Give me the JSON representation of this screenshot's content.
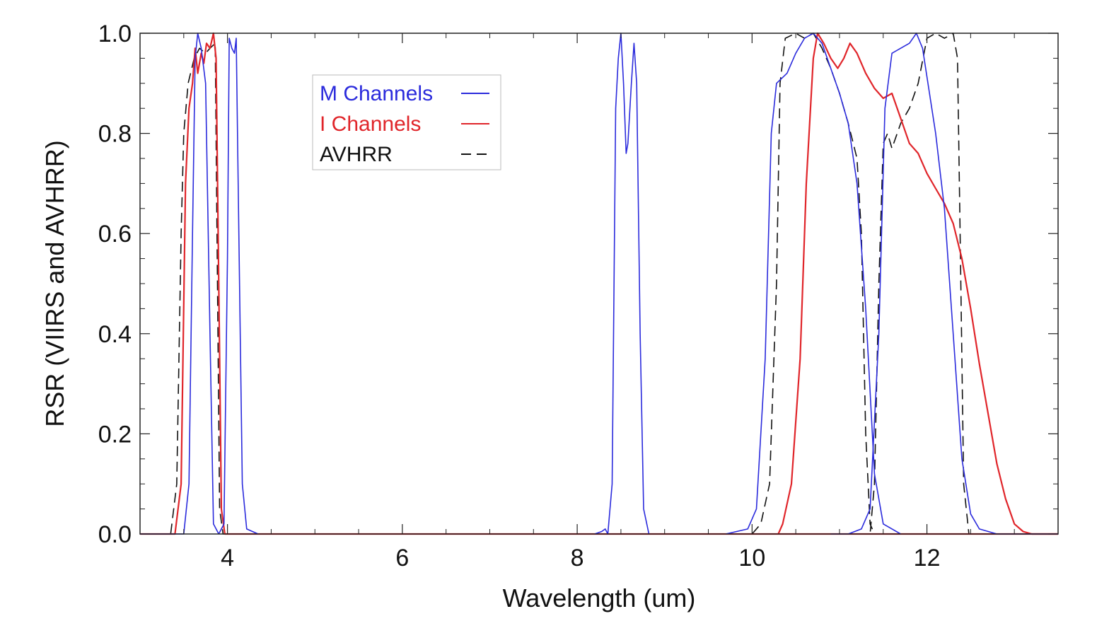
{
  "chart_data": {
    "type": "line",
    "title": "",
    "xlabel": "Wavelength (um)",
    "ylabel": "RSR (VIIRS and AVHRR)",
    "xlim": [
      3.0,
      13.5
    ],
    "ylim": [
      0.0,
      1.0
    ],
    "x_ticks": [
      "4",
      "6",
      "8",
      "10",
      "12"
    ],
    "y_ticks": [
      "0.0",
      "0.2",
      "0.4",
      "0.6",
      "0.8",
      "1.0"
    ],
    "grid": false,
    "legend_position": "top-left",
    "legend": [
      {
        "label": "M Channels",
        "color": "#2b2bdc",
        "style": "solid"
      },
      {
        "label": "I Channels",
        "color": "#e0252a",
        "style": "solid"
      },
      {
        "label": "AVHRR",
        "color": "#111111",
        "style": "dashed"
      }
    ],
    "series": [
      {
        "name": "M Channels",
        "color": "#2b2bdc",
        "style": "solid",
        "curves": [
          [
            [
              3.0,
              0.0
            ],
            [
              3.5,
              0.0
            ],
            [
              3.56,
              0.1
            ],
            [
              3.6,
              0.6
            ],
            [
              3.63,
              0.95
            ],
            [
              3.66,
              1.0
            ],
            [
              3.7,
              0.97
            ],
            [
              3.75,
              0.9
            ],
            [
              3.8,
              0.4
            ],
            [
              3.84,
              0.02
            ],
            [
              3.9,
              0.0
            ]
          ],
          [
            [
              3.9,
              0.0
            ],
            [
              3.96,
              0.02
            ],
            [
              4.0,
              0.55
            ],
            [
              4.02,
              0.99
            ],
            [
              4.05,
              0.97
            ],
            [
              4.08,
              0.96
            ],
            [
              4.1,
              0.99
            ],
            [
              4.13,
              0.6
            ],
            [
              4.17,
              0.1
            ],
            [
              4.22,
              0.01
            ],
            [
              4.35,
              0.0
            ]
          ],
          [
            [
              8.2,
              0.0
            ],
            [
              8.28,
              0.005
            ],
            [
              8.32,
              0.01
            ],
            [
              8.35,
              0.0
            ],
            [
              8.4,
              0.1
            ],
            [
              8.44,
              0.85
            ],
            [
              8.47,
              0.95
            ],
            [
              8.5,
              1.0
            ],
            [
              8.53,
              0.9
            ],
            [
              8.56,
              0.76
            ],
            [
              8.58,
              0.78
            ],
            [
              8.62,
              0.9
            ],
            [
              8.65,
              0.98
            ],
            [
              8.68,
              0.9
            ],
            [
              8.72,
              0.4
            ],
            [
              8.76,
              0.05
            ],
            [
              8.82,
              0.0
            ]
          ],
          [
            [
              9.7,
              0.0
            ],
            [
              9.95,
              0.01
            ],
            [
              10.05,
              0.05
            ],
            [
              10.15,
              0.35
            ],
            [
              10.22,
              0.8
            ],
            [
              10.28,
              0.9
            ],
            [
              10.4,
              0.92
            ],
            [
              10.5,
              0.96
            ],
            [
              10.6,
              0.99
            ],
            [
              10.7,
              1.0
            ],
            [
              10.8,
              0.98
            ],
            [
              10.9,
              0.93
            ],
            [
              11.0,
              0.88
            ],
            [
              11.1,
              0.82
            ],
            [
              11.2,
              0.7
            ],
            [
              11.3,
              0.45
            ],
            [
              11.4,
              0.12
            ],
            [
              11.5,
              0.02
            ],
            [
              11.7,
              0.0
            ]
          ],
          [
            [
              10.9,
              0.0
            ],
            [
              11.1,
              0.0
            ],
            [
              11.25,
              0.01
            ],
            [
              11.35,
              0.05
            ],
            [
              11.45,
              0.4
            ],
            [
              11.52,
              0.85
            ],
            [
              11.6,
              0.96
            ],
            [
              11.7,
              0.97
            ],
            [
              11.8,
              0.98
            ],
            [
              11.88,
              1.0
            ],
            [
              11.95,
              0.97
            ],
            [
              12.1,
              0.8
            ],
            [
              12.2,
              0.65
            ],
            [
              12.3,
              0.4
            ],
            [
              12.4,
              0.15
            ],
            [
              12.5,
              0.04
            ],
            [
              12.6,
              0.01
            ],
            [
              12.8,
              0.0
            ],
            [
              13.5,
              0.0
            ]
          ]
        ]
      },
      {
        "name": "I Channels",
        "color": "#e0252a",
        "style": "solid",
        "curves": [
          [
            [
              3.0,
              0.0
            ],
            [
              3.4,
              0.0
            ],
            [
              3.47,
              0.1
            ],
            [
              3.52,
              0.7
            ],
            [
              3.56,
              0.85
            ],
            [
              3.6,
              0.9
            ],
            [
              3.63,
              0.97
            ],
            [
              3.66,
              0.92
            ],
            [
              3.7,
              0.96
            ],
            [
              3.73,
              0.94
            ],
            [
              3.76,
              0.98
            ],
            [
              3.8,
              0.97
            ],
            [
              3.84,
              1.0
            ],
            [
              3.87,
              0.95
            ],
            [
              3.9,
              0.5
            ],
            [
              3.93,
              0.05
            ],
            [
              3.97,
              0.0
            ],
            [
              13.5,
              0.0
            ]
          ],
          [
            [
              10.3,
              0.0
            ],
            [
              10.35,
              0.02
            ],
            [
              10.45,
              0.1
            ],
            [
              10.55,
              0.35
            ],
            [
              10.62,
              0.7
            ],
            [
              10.7,
              0.95
            ],
            [
              10.75,
              1.0
            ],
            [
              10.82,
              0.98
            ],
            [
              10.9,
              0.95
            ],
            [
              10.98,
              0.93
            ],
            [
              11.05,
              0.95
            ],
            [
              11.12,
              0.98
            ],
            [
              11.2,
              0.96
            ],
            [
              11.3,
              0.92
            ],
            [
              11.4,
              0.89
            ],
            [
              11.5,
              0.87
            ],
            [
              11.6,
              0.88
            ],
            [
              11.7,
              0.83
            ],
            [
              11.8,
              0.78
            ],
            [
              11.9,
              0.76
            ],
            [
              12.0,
              0.72
            ],
            [
              12.1,
              0.69
            ],
            [
              12.2,
              0.66
            ],
            [
              12.3,
              0.62
            ],
            [
              12.4,
              0.55
            ],
            [
              12.5,
              0.45
            ],
            [
              12.6,
              0.34
            ],
            [
              12.7,
              0.24
            ],
            [
              12.8,
              0.14
            ],
            [
              12.9,
              0.07
            ],
            [
              13.0,
              0.02
            ],
            [
              13.1,
              0.005
            ],
            [
              13.2,
              0.0
            ],
            [
              13.5,
              0.0
            ]
          ]
        ]
      },
      {
        "name": "AVHRR",
        "color": "#111111",
        "style": "dashed",
        "curves": [
          [
            [
              3.0,
              0.0
            ],
            [
              3.35,
              0.0
            ],
            [
              3.42,
              0.1
            ],
            [
              3.47,
              0.6
            ],
            [
              3.5,
              0.8
            ],
            [
              3.55,
              0.9
            ],
            [
              3.62,
              0.95
            ],
            [
              3.68,
              0.97
            ],
            [
              3.75,
              0.96
            ],
            [
              3.8,
              0.97
            ],
            [
              3.86,
              0.98
            ],
            [
              3.88,
              0.6
            ],
            [
              3.91,
              0.05
            ],
            [
              3.95,
              0.0
            ],
            [
              13.5,
              0.0
            ]
          ],
          [
            [
              10.0,
              0.0
            ],
            [
              10.1,
              0.02
            ],
            [
              10.2,
              0.1
            ],
            [
              10.28,
              0.5
            ],
            [
              10.32,
              0.9
            ],
            [
              10.38,
              0.99
            ],
            [
              10.5,
              1.0
            ],
            [
              10.6,
              0.99
            ],
            [
              10.7,
              1.0
            ],
            [
              10.8,
              0.97
            ],
            [
              10.9,
              0.93
            ],
            [
              11.0,
              0.88
            ],
            [
              11.1,
              0.82
            ],
            [
              11.2,
              0.75
            ],
            [
              11.25,
              0.6
            ],
            [
              11.3,
              0.2
            ],
            [
              11.35,
              0.02
            ],
            [
              11.4,
              0.0
            ]
          ],
          [
            [
              11.2,
              0.0
            ],
            [
              11.35,
              0.0
            ],
            [
              11.4,
              0.1
            ],
            [
              11.45,
              0.5
            ],
            [
              11.5,
              0.78
            ],
            [
              11.55,
              0.8
            ],
            [
              11.6,
              0.77
            ],
            [
              11.7,
              0.82
            ],
            [
              11.8,
              0.85
            ],
            [
              11.9,
              0.9
            ],
            [
              12.0,
              0.99
            ],
            [
              12.1,
              1.0
            ],
            [
              12.2,
              0.99
            ],
            [
              12.3,
              1.0
            ],
            [
              12.35,
              0.95
            ],
            [
              12.38,
              0.6
            ],
            [
              12.42,
              0.1
            ],
            [
              12.48,
              0.0
            ],
            [
              13.5,
              0.0
            ]
          ]
        ]
      }
    ]
  }
}
